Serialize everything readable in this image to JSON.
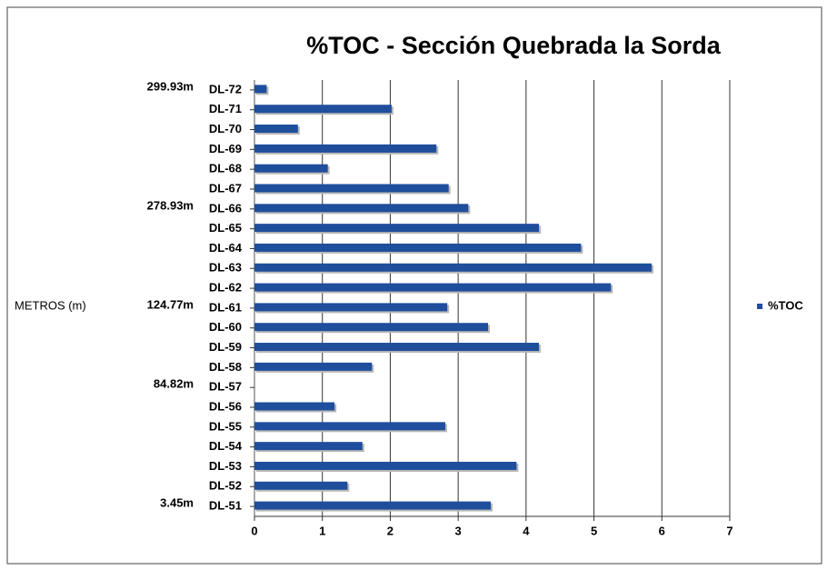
{
  "chart_data": {
    "type": "hbar",
    "title": "%TOC  - Sección Quebrada la Sorda",
    "y_axis_label": "METROS (m)",
    "categories": [
      "DL-72",
      "DL-71",
      "DL-70",
      "DL-69",
      "DL-68",
      "DL-67",
      "DL-66",
      "DL-65",
      "DL-64",
      "DL-63",
      "DL-62",
      "DL-61",
      "DL-60",
      "DL-59",
      "DL-58",
      "DL-57",
      "DL-56",
      "DL-55",
      "DL-54",
      "DL-53",
      "DL-52",
      "DL-51"
    ],
    "depth_labels": [
      "299.93m",
      null,
      null,
      null,
      null,
      null,
      "278.93m",
      null,
      null,
      null,
      null,
      "124.77m",
      null,
      null,
      null,
      "84.82m",
      null,
      null,
      null,
      null,
      null,
      "3.45m"
    ],
    "series": [
      {
        "name": "%TOC",
        "color": "#1f4e9c",
        "values": [
          0.18,
          2.02,
          0.64,
          2.68,
          1.08,
          2.86,
          3.15,
          4.19,
          4.81,
          5.85,
          5.25,
          2.84,
          3.44,
          4.19,
          1.73,
          null,
          1.18,
          2.81,
          1.59,
          3.86,
          1.37,
          3.48
        ]
      }
    ],
    "xlim": [
      0,
      7
    ],
    "xticks": [
      0,
      1,
      2,
      3,
      4,
      5,
      6,
      7
    ],
    "grid": true,
    "legend": "right"
  }
}
